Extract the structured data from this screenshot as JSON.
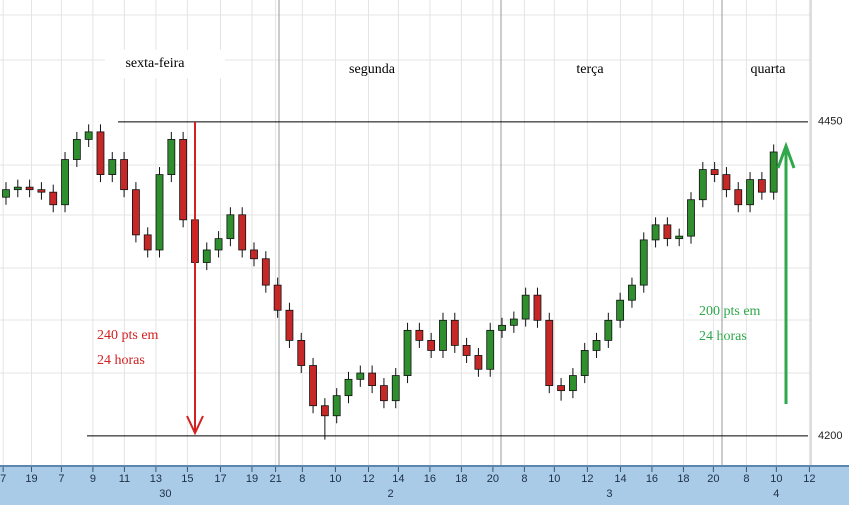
{
  "chart_data": {
    "type": "candlestick",
    "day_labels": [
      "sexta-feira",
      "segunda",
      "terça",
      "quarta"
    ],
    "down_note": [
      "240 pts em",
      "24 horas"
    ],
    "up_note": [
      "200 pts em",
      "24 horas"
    ],
    "up_color": "#2f8f2f",
    "down_color": "#c62828",
    "x": [
      0.38,
      1.13,
      1.88,
      2.63,
      3.38,
      4.13,
      4.88,
      5.63,
      6.38,
      7.13,
      7.88,
      8.63,
      9.38,
      10.13,
      10.88,
      11.63,
      12.38,
      13.13,
      13.88,
      14.63,
      15.38,
      16.13,
      16.88,
      17.63,
      18.38,
      19.13,
      19.88,
      20.63,
      21.38,
      22.13,
      22.88,
      23.63,
      24.38,
      25.13,
      25.88,
      26.63,
      27.38,
      28.13,
      28.88,
      29.63,
      30.38,
      31.13,
      31.88,
      32.63,
      33.38,
      34.13,
      34.88,
      35.63,
      36.38,
      37.13,
      37.88,
      38.63,
      39.38,
      40.13,
      40.88,
      41.63,
      42.38,
      43.13,
      43.88,
      44.63,
      45.38,
      46.13,
      46.88,
      47.63,
      48.38,
      49.13
    ],
    "open": [
      4390,
      4396,
      4398,
      4396,
      4394,
      4384,
      4420,
      4436,
      4442,
      4408,
      4420,
      4396,
      4360,
      4348,
      4408,
      4436,
      4372,
      4338,
      4348,
      4357,
      4376,
      4348,
      4341,
      4320,
      4300,
      4276,
      4256,
      4224,
      4216,
      4232,
      4245,
      4250,
      4240,
      4228,
      4248,
      4284,
      4276,
      4268,
      4292,
      4272,
      4264,
      4253,
      4284,
      4288,
      4293,
      4312,
      4292,
      4240,
      4236,
      4248,
      4268,
      4276,
      4292,
      4308,
      4320,
      4356,
      4368,
      4357,
      4359,
      4388,
      4412,
      4408,
      4396,
      4384,
      4404,
      4394
    ],
    "high": [
      4402,
      4404,
      4404,
      4402,
      4400,
      4426,
      4442,
      4448,
      4448,
      4426,
      4426,
      4402,
      4366,
      4414,
      4442,
      4442,
      4378,
      4354,
      4363,
      4382,
      4382,
      4354,
      4347,
      4326,
      4306,
      4282,
      4262,
      4230,
      4238,
      4251,
      4256,
      4256,
      4246,
      4254,
      4290,
      4290,
      4282,
      4298,
      4298,
      4278,
      4270,
      4290,
      4294,
      4299,
      4318,
      4318,
      4298,
      4246,
      4254,
      4274,
      4282,
      4298,
      4314,
      4326,
      4362,
      4374,
      4374,
      4365,
      4394,
      4418,
      4418,
      4414,
      4402,
      4410,
      4410,
      4432
    ],
    "low": [
      4384,
      4390,
      4390,
      4388,
      4378,
      4378,
      4414,
      4430,
      4402,
      4402,
      4390,
      4354,
      4342,
      4342,
      4402,
      4366,
      4312,
      4332,
      4342,
      4351,
      4342,
      4335,
      4314,
      4294,
      4270,
      4250,
      4218,
      4197,
      4210,
      4226,
      4239,
      4234,
      4222,
      4222,
      4242,
      4270,
      4262,
      4262,
      4266,
      4258,
      4247,
      4247,
      4278,
      4282,
      4287,
      4286,
      4234,
      4228,
      4230,
      4242,
      4262,
      4270,
      4286,
      4302,
      4314,
      4350,
      4351,
      4351,
      4353,
      4382,
      4402,
      4390,
      4378,
      4378,
      4388,
      4388
    ],
    "close": [
      4396,
      4398,
      4396,
      4394,
      4384,
      4420,
      4436,
      4442,
      4408,
      4420,
      4396,
      4360,
      4348,
      4408,
      4436,
      4372,
      4338,
      4348,
      4357,
      4376,
      4348,
      4341,
      4320,
      4300,
      4276,
      4256,
      4224,
      4216,
      4232,
      4245,
      4250,
      4240,
      4228,
      4248,
      4284,
      4276,
      4268,
      4292,
      4272,
      4264,
      4253,
      4284,
      4288,
      4293,
      4312,
      4292,
      4240,
      4236,
      4248,
      4268,
      4276,
      4292,
      4308,
      4320,
      4356,
      4368,
      4357,
      4359,
      4388,
      4412,
      4408,
      4396,
      4384,
      4404,
      4394,
      4426
    ],
    "xlim": [
      0,
      51.5
    ],
    "xticks": [
      {
        "value": 0.2,
        "label": "7"
      },
      {
        "value": 2.0,
        "label": "19"
      },
      {
        "value": 3.9,
        "label": "7"
      },
      {
        "value": 5.9,
        "label": "9"
      },
      {
        "value": 7.9,
        "label": "11"
      },
      {
        "value": 9.9,
        "label": "13"
      },
      {
        "value": 11.9,
        "label": "15"
      },
      {
        "value": 14.0,
        "label": "17"
      },
      {
        "value": 16.0,
        "label": "19"
      },
      {
        "value": 17.5,
        "label": "21"
      },
      {
        "value": 19.2,
        "label": "8"
      },
      {
        "value": 21.3,
        "label": "10"
      },
      {
        "value": 23.4,
        "label": "12"
      },
      {
        "value": 25.3,
        "label": "14"
      },
      {
        "value": 27.3,
        "label": "16"
      },
      {
        "value": 29.3,
        "label": "18"
      },
      {
        "value": 31.3,
        "label": "20"
      },
      {
        "value": 33.3,
        "label": "8"
      },
      {
        "value": 35.2,
        "label": "10"
      },
      {
        "value": 37.3,
        "label": "12"
      },
      {
        "value": 39.4,
        "label": "14"
      },
      {
        "value": 41.4,
        "label": "16"
      },
      {
        "value": 43.4,
        "label": "18"
      },
      {
        "value": 45.3,
        "label": "20"
      },
      {
        "value": 47.4,
        "label": "8"
      },
      {
        "value": 49.3,
        "label": "10"
      },
      {
        "value": 51.4,
        "label": "12"
      }
    ],
    "xticks2": [
      {
        "value": 10.5,
        "label": "30"
      },
      {
        "value": 24.8,
        "label": "2"
      },
      {
        "value": 38.7,
        "label": "3"
      },
      {
        "value": 49.3,
        "label": "4"
      }
    ],
    "ylim": [
      4176,
      4547
    ],
    "yticks": [
      4450,
      4200
    ]
  }
}
